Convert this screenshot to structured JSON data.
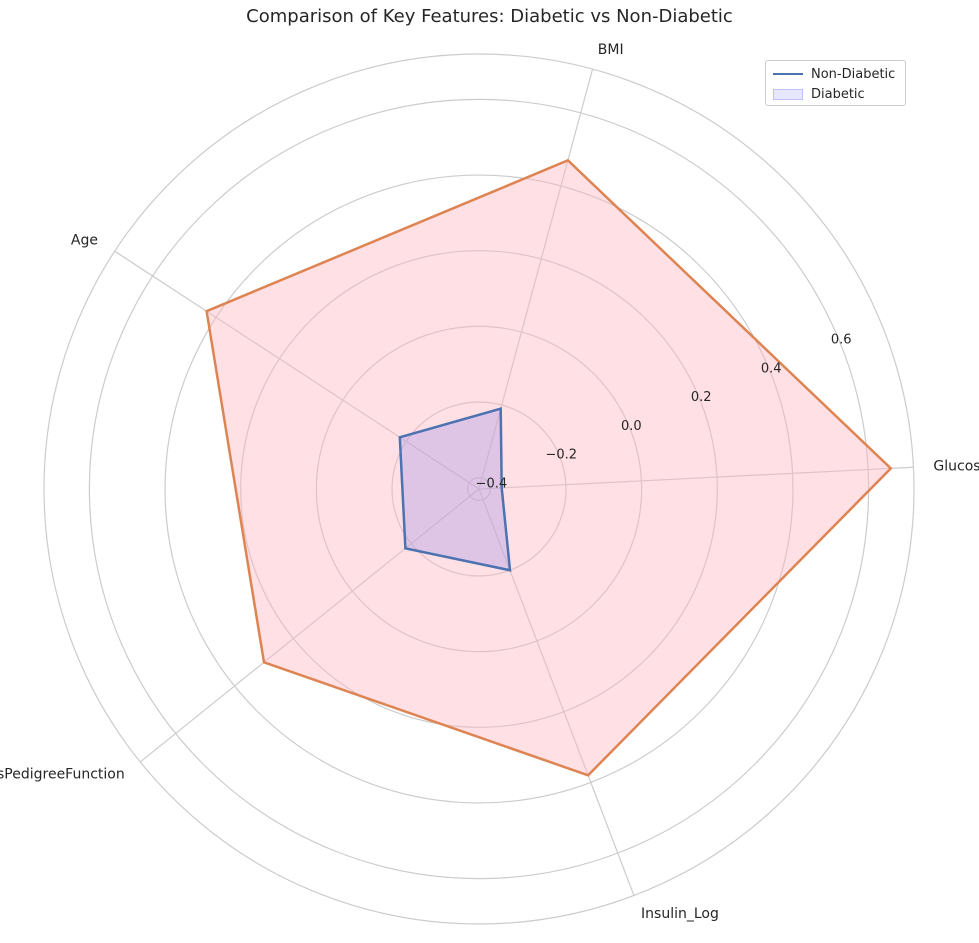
{
  "chart_data": {
    "type": "radar",
    "title": "Comparison of Key Features: Diabetic vs Non-Diabetic",
    "axes": [
      "Glucose",
      "BMI",
      "Age",
      "DiabetesPedigreeFunction",
      "Insulin_Log"
    ],
    "r_ticks": [
      -0.4,
      -0.2,
      0.0,
      0.2,
      0.4,
      0.6
    ],
    "r_tick_labels": [
      "−0.4",
      "−0.2",
      "0.0",
      "0.2",
      "0.4",
      "0.6"
    ],
    "rlim": [
      -0.43,
      0.72
    ],
    "grid": true,
    "legend": {
      "position": "top-right",
      "entries": [
        {
          "label": "Non-Diabetic",
          "marker": "line",
          "color": "#4c72b0"
        },
        {
          "label": "Diabetic",
          "marker": "patch",
          "color": "#7878ff"
        }
      ]
    },
    "series": [
      {
        "values": [
          0.66,
          0.47,
          0.43,
          0.3,
          0.38
        ],
        "line_color": "#dd8452",
        "fill_color": "#ffb6c1"
      },
      {
        "values": [
          -0.37,
          -0.21,
          -0.18,
          -0.18,
          -0.2
        ],
        "line_color": "#4c72b0",
        "fill_color": "#b0a0e6"
      }
    ]
  }
}
